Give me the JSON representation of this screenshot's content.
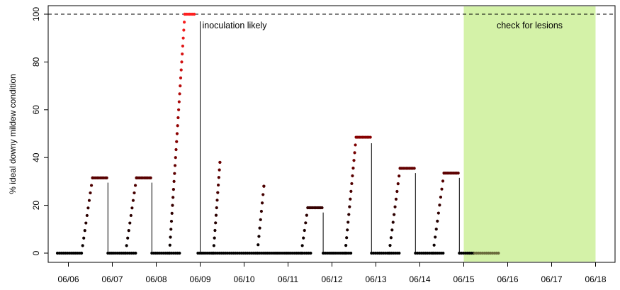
{
  "chart_data": {
    "type": "scatter",
    "title": "",
    "xlabel": "",
    "ylabel": "% ideal downy mildew condition",
    "xlim": [
      0,
      12.9
    ],
    "ylim": [
      0,
      100
    ],
    "x_tick_labels": [
      "06/06",
      "06/07",
      "06/08",
      "06/09",
      "06/10",
      "06/11",
      "06/12",
      "06/13",
      "06/14",
      "06/15",
      "06/16",
      "06/17",
      "06/18"
    ],
    "x_ticks": [
      0.25,
      1.25,
      2.25,
      3.25,
      4.25,
      5.25,
      6.25,
      7.25,
      8.25,
      9.25,
      10.25,
      11.25,
      12.25
    ],
    "y_ticks": [
      0,
      20,
      40,
      60,
      80,
      100
    ],
    "reference_line": {
      "y": 100,
      "style": "dashed"
    },
    "highlight_region": {
      "x": [
        9.25,
        12.25
      ],
      "label": "check for lesions",
      "color": "#d4f2a8"
    },
    "annotations": [
      {
        "text": "inoculation likely",
        "x": 3.25,
        "y": 97
      }
    ],
    "episodes": [
      {
        "rise_start": 0.55,
        "peak_start": 0.8,
        "peak_end": 1.15,
        "value": 31.5,
        "line_x": 1.15,
        "line_top": 29.5
      },
      {
        "rise_start": 1.55,
        "peak_start": 1.8,
        "peak_end": 2.15,
        "value": 31.5,
        "line_x": 2.15,
        "line_top": 29.5
      },
      {
        "rise_start": 2.55,
        "peak_start": 2.9,
        "peak_end": 3.15,
        "value": 100,
        "line_x": 3.25,
        "line_top": 97
      },
      {
        "rise_start": 3.55,
        "peak_start": 3.7,
        "peak_end": 3.7,
        "value": 38,
        "line_x": null,
        "line_top": null
      },
      {
        "rise_start": 4.55,
        "peak_start": 4.7,
        "peak_end": 4.7,
        "value": 28,
        "line_x": null,
        "line_top": null
      },
      {
        "rise_start": 5.55,
        "peak_start": 5.7,
        "peak_end": 6.05,
        "value": 19,
        "line_x": 6.05,
        "line_top": 17
      },
      {
        "rise_start": 6.55,
        "peak_start": 6.8,
        "peak_end": 7.15,
        "value": 48.5,
        "line_x": 7.15,
        "line_top": 46
      },
      {
        "rise_start": 7.55,
        "peak_start": 7.8,
        "peak_end": 8.15,
        "value": 35.5,
        "line_x": 8.15,
        "line_top": 33.5
      },
      {
        "rise_start": 8.55,
        "peak_start": 8.8,
        "peak_end": 9.15,
        "value": 33.5,
        "line_x": 9.15,
        "line_top": 31.5
      }
    ],
    "zero_segments": [
      {
        "x": [
          0.0,
          0.55
        ]
      },
      {
        "x": [
          1.15,
          1.8
        ]
      },
      {
        "x": [
          2.15,
          2.8
        ]
      },
      {
        "x": [
          3.2,
          5.8
        ]
      },
      {
        "x": [
          6.05,
          6.7
        ]
      },
      {
        "x": [
          7.15,
          7.8
        ]
      },
      {
        "x": [
          8.15,
          8.8
        ]
      },
      {
        "x": [
          9.15,
          9.5
        ]
      }
    ],
    "trailing_segment": {
      "x": [
        9.5,
        10.05
      ],
      "color": "#6b6b3c"
    },
    "color_scale": {
      "low": "#000000",
      "mid": "#8b0000",
      "high": "#ff2020"
    }
  }
}
